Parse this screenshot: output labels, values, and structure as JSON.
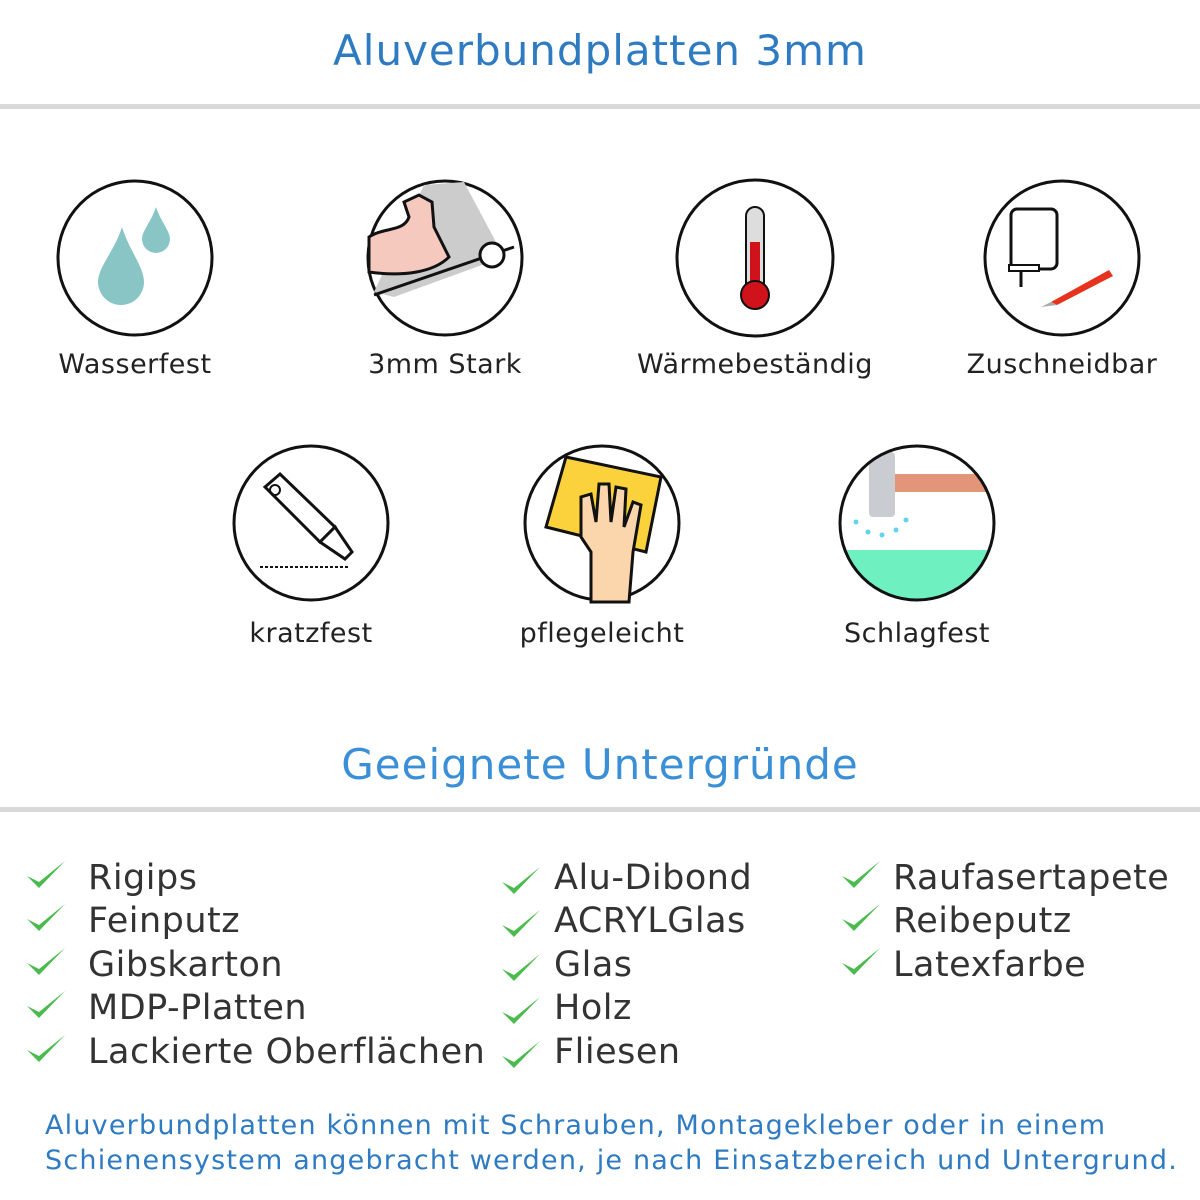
{
  "header": {
    "title": "Aluverbundplatten 3mm"
  },
  "features": [
    {
      "label": "Wasserfest",
      "icon": "water-drops-icon"
    },
    {
      "label": "3mm Stark",
      "icon": "strong-arm-icon"
    },
    {
      "label": "Wärmebeständig",
      "icon": "thermometer-icon"
    },
    {
      "label": "Zuschneidbar",
      "icon": "jigsaw-knife-icon"
    },
    {
      "label": "kratzfest",
      "icon": "cutter-knife-icon"
    },
    {
      "label": "pflegeleicht",
      "icon": "hand-sponge-icon"
    },
    {
      "label": "Schlagfest",
      "icon": "hammer-impact-icon"
    }
  ],
  "surfaces": {
    "title": "Geeignete Untergründe",
    "columns": [
      [
        "Rigips",
        "Feinputz",
        "Gibskarton",
        "MDP-Platten",
        "Lackierte Oberflächen"
      ],
      [
        "Alu-Dibond",
        "ACRYLGlas",
        "Glas",
        "Holz",
        "Fliesen"
      ],
      [
        "Raufasertapete",
        "Reibeputz",
        "Latexfarbe"
      ]
    ]
  },
  "footer": {
    "line1": "Aluverbundplatten können mit Schrauben, Montagekleber oder in einem",
    "line2": "Schienensystem angebracht werden, je nach Einsatzbereich und Untergrund."
  },
  "colors": {
    "accent": "#2f7bc2",
    "check": "#4cbb4f",
    "text": "#333333"
  }
}
